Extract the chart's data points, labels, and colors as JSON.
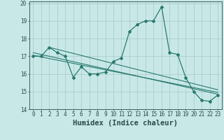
{
  "xlabel": "Humidex (Indice chaleur)",
  "ylabel": "",
  "xlim": [
    -0.5,
    23.5
  ],
  "ylim": [
    14,
    20.1
  ],
  "yticks": [
    14,
    15,
    16,
    17,
    18,
    19,
    20
  ],
  "xticks": [
    0,
    1,
    2,
    3,
    4,
    5,
    6,
    7,
    8,
    9,
    10,
    11,
    12,
    13,
    14,
    15,
    16,
    17,
    18,
    19,
    20,
    21,
    22,
    23
  ],
  "main_line_x": [
    0,
    1,
    2,
    3,
    4,
    5,
    6,
    7,
    8,
    9,
    10,
    11,
    12,
    13,
    14,
    15,
    16,
    17,
    18,
    19,
    20,
    21,
    22,
    23
  ],
  "main_line_y": [
    17.0,
    17.0,
    17.5,
    17.2,
    17.0,
    15.8,
    16.4,
    16.0,
    16.0,
    16.1,
    16.7,
    16.9,
    18.4,
    18.8,
    19.0,
    19.0,
    19.8,
    17.2,
    17.1,
    15.8,
    15.0,
    14.5,
    14.45,
    14.8
  ],
  "trend_line1_x": [
    0,
    23
  ],
  "trend_line1_y": [
    17.2,
    14.85
  ],
  "trend_line2_x": [
    0,
    23
  ],
  "trend_line2_y": [
    17.05,
    14.95
  ],
  "trend_line3_x": [
    2,
    23
  ],
  "trend_line3_y": [
    17.5,
    15.1
  ],
  "line_color": "#2a7a6e",
  "bg_color": "#c8e8e8",
  "grid_color": "#a8c8c8",
  "font_color": "#2a4a4a",
  "tick_fontsize": 5.5,
  "label_fontsize": 7.5
}
